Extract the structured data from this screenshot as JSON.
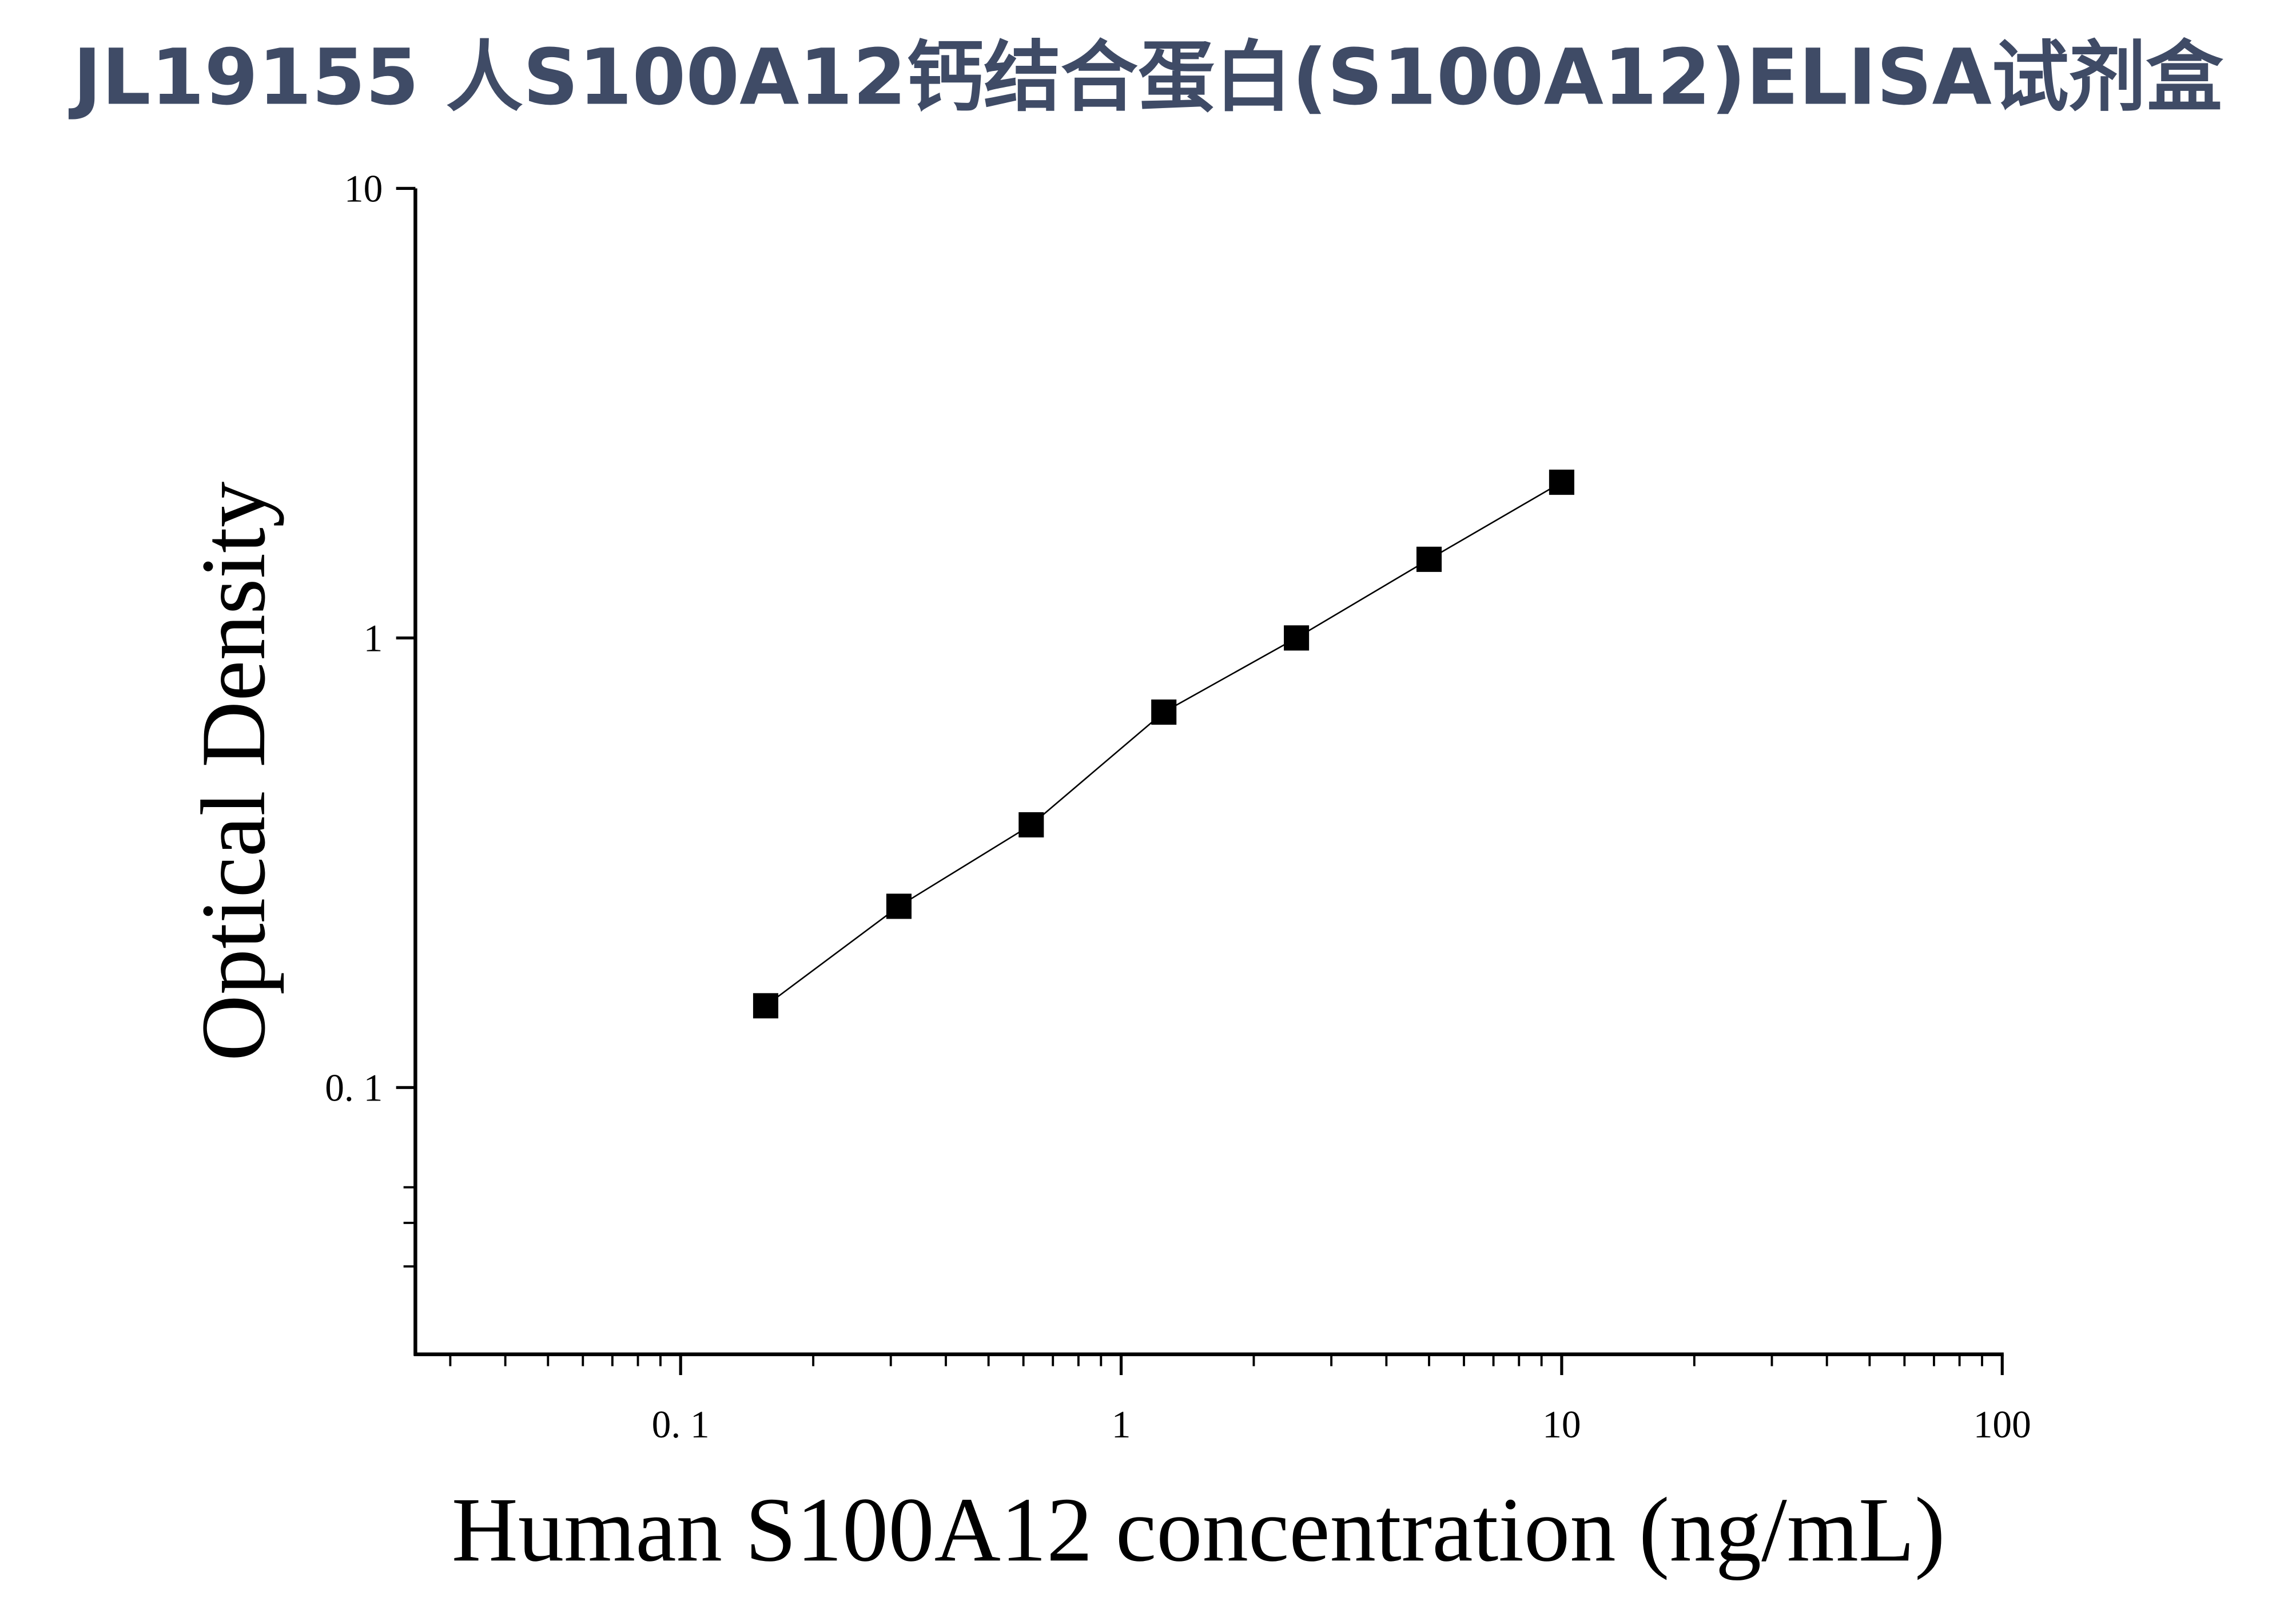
{
  "chart_data": {
    "type": "scatter",
    "title": "JL19155 人S100A12钙结合蛋白(S100A12)ELISA试剂盒",
    "x_label": "Human S100A12 concentration (ng/mL)",
    "y_label": "Optical Density",
    "x_scale": "log",
    "y_scale": "log",
    "xlim": [
      0.025,
      100
    ],
    "ylim": [
      0.0255,
      10
    ],
    "xticks": [
      {
        "value": 0.1,
        "label": "0. 1"
      },
      1,
      10,
      100
    ],
    "yticks": [
      {
        "value": 0.1,
        "label": "0. 1"
      },
      1,
      10
    ],
    "xminor": [
      0.03,
      0.04,
      0.05,
      0.06,
      0.07,
      0.08,
      0.09,
      0.2,
      0.3,
      0.4,
      0.5,
      0.6,
      0.7,
      0.8,
      0.9,
      2,
      3,
      4,
      5,
      6,
      7,
      8,
      9,
      20,
      30,
      40,
      50,
      60,
      70,
      80,
      90
    ],
    "yminor": [
      0.04,
      0.05,
      0.06
    ],
    "series": [
      {
        "color": "#000000",
        "x": [
          0.156,
          0.313,
          0.625,
          1.25,
          2.5,
          5,
          10
        ],
        "values": [
          0.152,
          0.253,
          0.384,
          0.684,
          1.0,
          1.496,
          2.22
        ]
      }
    ]
  }
}
